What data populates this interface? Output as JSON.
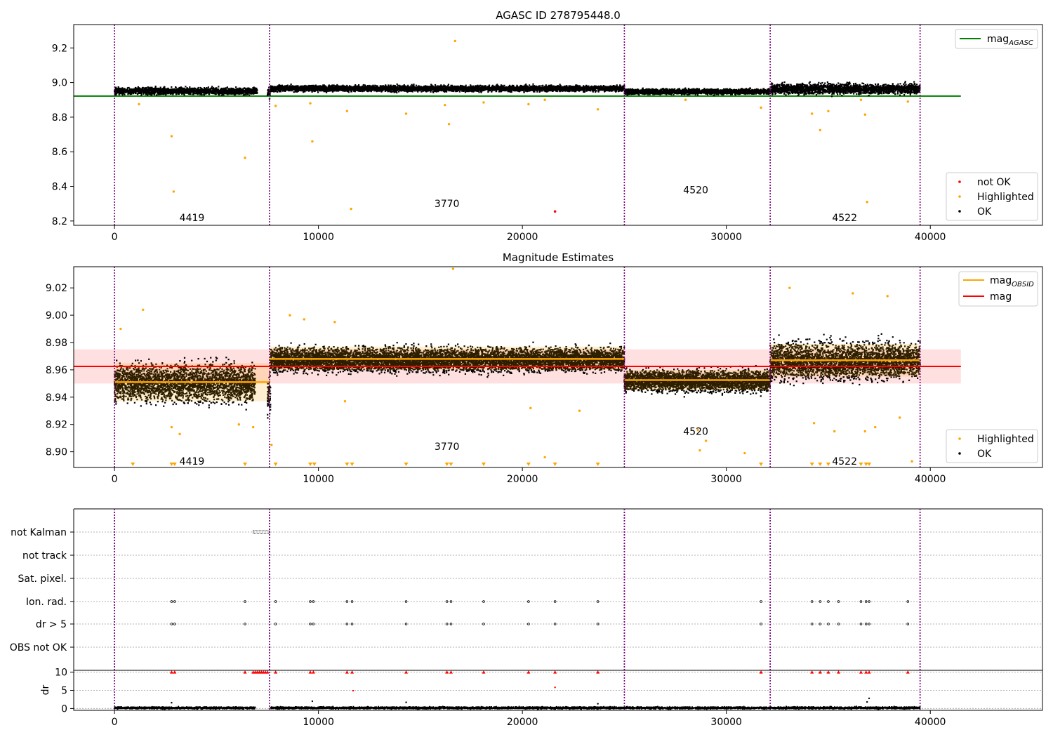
{
  "colors": {
    "not_ok": "#ff0000",
    "highlighted": "#ffa500",
    "ok": "#000000",
    "mag_agasc": "#008000",
    "mag_obsid": "#ffa500",
    "mag": "#ff0000",
    "obsid_boundary": "#800080",
    "mag_band": "#ffcccc"
  },
  "chart_data": [
    {
      "id": "top",
      "type": "scatter",
      "title": "AGASC ID 278795448.0",
      "xlim": [
        -2000,
        45500
      ],
      "ylim": [
        8.175,
        9.335
      ],
      "x_ticks": [
        "0",
        "10000",
        "20000",
        "30000",
        "40000"
      ],
      "x_tick_values": [
        0,
        10000,
        20000,
        30000,
        40000
      ],
      "y_ticks": [
        "8.2",
        "8.4",
        "8.6",
        "8.8",
        "9.0",
        "9.2"
      ],
      "y_tick_values": [
        8.2,
        8.4,
        8.6,
        8.8,
        9.0,
        9.2
      ],
      "legend_upper": {
        "position": "top-right",
        "entries": [
          {
            "label": "mag",
            "sub": "AGASC",
            "kind": "line",
            "color_key": "mag_agasc"
          }
        ]
      },
      "legend_lower": {
        "position": "bottom-right",
        "entries": [
          {
            "label": "not OK",
            "kind": "dot",
            "color_key": "not_ok"
          },
          {
            "label": "Highlighted",
            "kind": "dot",
            "color_key": "highlighted"
          },
          {
            "label": "OK",
            "kind": "dot",
            "color_key": "ok"
          }
        ]
      },
      "obsid_boundaries": [
        0,
        7600,
        25000,
        32150,
        39500
      ],
      "obsid_labels": [
        {
          "text": "4419",
          "x": 3800,
          "y": 8.22
        },
        {
          "text": "3770",
          "x": 16300,
          "y": 8.3
        },
        {
          "text": "4520",
          "x": 28500,
          "y": 8.38
        },
        {
          "text": "4522",
          "x": 35800,
          "y": 8.22
        }
      ],
      "hlines": [
        {
          "color_key": "mag_agasc",
          "y": 8.922,
          "x": [
            -2000,
            41500
          ]
        }
      ],
      "segments": [
        {
          "x": [
            0,
            7000
          ],
          "center": 8.955,
          "spread": 0.02
        },
        {
          "x": [
            7500,
            7650
          ],
          "center": 8.945,
          "spread": 0.03
        },
        {
          "x": [
            7650,
            25000
          ],
          "center": 8.97,
          "spread": 0.018
        },
        {
          "x": [
            25000,
            32150
          ],
          "center": 8.952,
          "spread": 0.016
        },
        {
          "x": [
            32150,
            39500
          ],
          "center": 8.968,
          "spread": 0.03
        }
      ],
      "highlighted_points": [
        [
          2800,
          8.69
        ],
        [
          2900,
          8.37
        ],
        [
          6400,
          8.565
        ],
        [
          9700,
          8.66
        ],
        [
          11600,
          8.27
        ],
        [
          16400,
          8.76
        ],
        [
          16700,
          9.24
        ],
        [
          16200,
          8.87
        ],
        [
          11400,
          8.835
        ],
        [
          14300,
          8.82
        ],
        [
          18100,
          8.885
        ],
        [
          20300,
          8.875
        ],
        [
          21100,
          8.9
        ],
        [
          23700,
          8.845
        ],
        [
          34200,
          8.82
        ],
        [
          34600,
          8.725
        ],
        [
          35000,
          8.835
        ],
        [
          36900,
          8.31
        ],
        [
          36800,
          8.815
        ],
        [
          36600,
          8.9
        ],
        [
          38900,
          8.89
        ],
        [
          31700,
          8.855
        ],
        [
          28000,
          8.9
        ],
        [
          1200,
          8.875
        ],
        [
          7900,
          8.865
        ],
        [
          9600,
          8.88
        ]
      ],
      "not_ok_points": [
        [
          21600,
          8.255
        ]
      ]
    },
    {
      "id": "middle",
      "type": "scatter",
      "title": "Magnitude Estimates",
      "xlim": [
        -2000,
        45500
      ],
      "ylim": [
        8.8885,
        9.0355
      ],
      "x_ticks": [
        "0",
        "10000",
        "20000",
        "30000",
        "40000"
      ],
      "x_tick_values": [
        0,
        10000,
        20000,
        30000,
        40000
      ],
      "y_ticks": [
        "8.90",
        "8.92",
        "8.94",
        "8.96",
        "8.98",
        "9.00",
        "9.02"
      ],
      "y_tick_values": [
        8.9,
        8.92,
        8.94,
        8.96,
        8.98,
        9.0,
        9.02
      ],
      "legend_upper": {
        "position": "top-right",
        "entries": [
          {
            "label": "mag",
            "sub": "OBSID",
            "kind": "line",
            "color_key": "mag_obsid"
          },
          {
            "label": "mag",
            "sub": "",
            "kind": "line",
            "color_key": "mag"
          }
        ]
      },
      "legend_lower": {
        "position": "bottom-right",
        "entries": [
          {
            "label": "Highlighted",
            "kind": "dot",
            "color_key": "highlighted"
          },
          {
            "label": "OK",
            "kind": "dot",
            "color_key": "ok"
          }
        ]
      },
      "obsid_boundaries": [
        0,
        7600,
        25000,
        32150,
        39500
      ],
      "obsid_labels": [
        {
          "text": "4419",
          "x": 3800,
          "y": 8.893
        },
        {
          "text": "3770",
          "x": 16300,
          "y": 8.904
        },
        {
          "text": "4520",
          "x": 28500,
          "y": 8.915
        },
        {
          "text": "4522",
          "x": 35800,
          "y": 8.893
        }
      ],
      "mag": 8.9625,
      "mag_band": [
        8.95,
        8.975
      ],
      "obsid_mags": [
        {
          "x": [
            0,
            7600
          ],
          "y": 8.951,
          "band": [
            8.937,
            8.965
          ]
        },
        {
          "x": [
            7600,
            25000
          ],
          "y": 8.968,
          "band": [
            8.96,
            8.977
          ]
        },
        {
          "x": [
            25000,
            32150
          ],
          "y": 8.9525,
          "band": [
            8.945,
            8.96
          ]
        },
        {
          "x": [
            32150,
            39500
          ],
          "y": 8.967,
          "band": [
            8.955,
            8.979
          ]
        }
      ],
      "segments": [
        {
          "x": [
            0,
            6900
          ],
          "center": 8.951,
          "spread": 0.014
        },
        {
          "x": [
            7500,
            7650
          ],
          "center": 8.94,
          "spread": 0.015
        },
        {
          "x": [
            7650,
            25000
          ],
          "center": 8.968,
          "spread": 0.009
        },
        {
          "x": [
            25000,
            32150
          ],
          "center": 8.9525,
          "spread": 0.008
        },
        {
          "x": [
            32150,
            39500
          ],
          "center": 8.967,
          "spread": 0.014
        }
      ],
      "highlighted_points": [
        [
          1400,
          9.004
        ],
        [
          300,
          8.99
        ],
        [
          2800,
          8.918
        ],
        [
          3200,
          8.913
        ],
        [
          6100,
          8.92
        ],
        [
          6800,
          8.918
        ],
        [
          16600,
          9.034
        ],
        [
          11300,
          8.937
        ],
        [
          20400,
          8.932
        ],
        [
          21100,
          8.896
        ],
        [
          22800,
          8.93
        ],
        [
          28600,
          8.916
        ],
        [
          29000,
          8.908
        ],
        [
          28700,
          8.901
        ],
        [
          30900,
          8.899
        ],
        [
          34300,
          8.921
        ],
        [
          35300,
          8.915
        ],
        [
          36800,
          8.915
        ],
        [
          37300,
          8.918
        ],
        [
          38500,
          8.925
        ],
        [
          39100,
          8.893
        ],
        [
          7700,
          8.905
        ],
        [
          37900,
          9.014
        ],
        [
          36200,
          9.016
        ],
        [
          33100,
          9.02
        ],
        [
          8600,
          9.0
        ],
        [
          9300,
          8.997
        ],
        [
          10800,
          8.995
        ]
      ],
      "clipped_markers_x": [
        900,
        2800,
        2950,
        6400,
        7900,
        9600,
        9800,
        11400,
        11650,
        14300,
        16300,
        16500,
        18100,
        20300,
        21600,
        23700,
        31700,
        34200,
        34600,
        35000,
        36600,
        36850,
        37000
      ]
    },
    {
      "id": "flags",
      "type": "scatter",
      "xlim": [
        -2000,
        45500
      ],
      "categories": [
        "not Kalman",
        "not track",
        "Sat. pixel.",
        "Ion. rad.",
        "dr > 5",
        "OBS not OK"
      ],
      "flag_runs": [
        {
          "category": "not Kalman",
          "x": [
            6800,
            7600
          ]
        }
      ],
      "flag_points": [
        {
          "category": "Ion. rad.",
          "x": [
            2800,
            2950,
            6400,
            7900,
            9600,
            9750,
            11400,
            11650,
            14300,
            16300,
            16500,
            18100,
            20300,
            21600,
            23700,
            31700,
            34200,
            34600,
            35000,
            35500,
            36600,
            36850,
            37000,
            38900
          ]
        },
        {
          "category": "dr > 5",
          "x": [
            2800,
            2950,
            6400,
            7900,
            9600,
            9750,
            11400,
            11650,
            14300,
            16300,
            16500,
            18100,
            20300,
            21600,
            23700,
            31700,
            34200,
            34600,
            35000,
            35500,
            36600,
            36850,
            37000,
            38900
          ]
        }
      ],
      "obsid_boundaries": [
        0,
        7600,
        25000,
        32150,
        39500
      ]
    },
    {
      "id": "dr",
      "type": "scatter",
      "ylabel": "dr",
      "xlim": [
        -2000,
        45500
      ],
      "ylim": [
        -0.5,
        10.5
      ],
      "x_ticks": [
        "0",
        "10000",
        "20000",
        "30000",
        "40000"
      ],
      "x_tick_values": [
        0,
        10000,
        20000,
        30000,
        40000
      ],
      "y_ticks": [
        "0",
        "5",
        "10"
      ],
      "y_tick_values": [
        0,
        5,
        10
      ],
      "obsid_boundaries": [
        0,
        7600,
        25000,
        32150,
        39500
      ],
      "segments": [
        {
          "x": [
            0,
            6900
          ],
          "center": 0.35,
          "spread": 0.3
        },
        {
          "x": [
            7650,
            39500
          ],
          "center": 0.35,
          "spread": 0.3
        }
      ],
      "clipped_markers_x": [
        2800,
        2950,
        6400,
        6800,
        6900,
        7000,
        7100,
        7200,
        7300,
        7400,
        7500,
        7900,
        9600,
        9750,
        11400,
        11650,
        14300,
        16300,
        16500,
        18100,
        20300,
        21600,
        23700,
        31700,
        34200,
        34600,
        35000,
        35500,
        36600,
        36850,
        37000,
        38900
      ],
      "red_points": [
        [
          11700,
          4.9
        ],
        [
          21600,
          5.8
        ]
      ],
      "black_points": [
        [
          2800,
          1.6
        ],
        [
          9700,
          2.0
        ],
        [
          14300,
          1.7
        ],
        [
          23700,
          1.3
        ],
        [
          37000,
          2.8
        ],
        [
          36900,
          1.8
        ]
      ]
    }
  ]
}
